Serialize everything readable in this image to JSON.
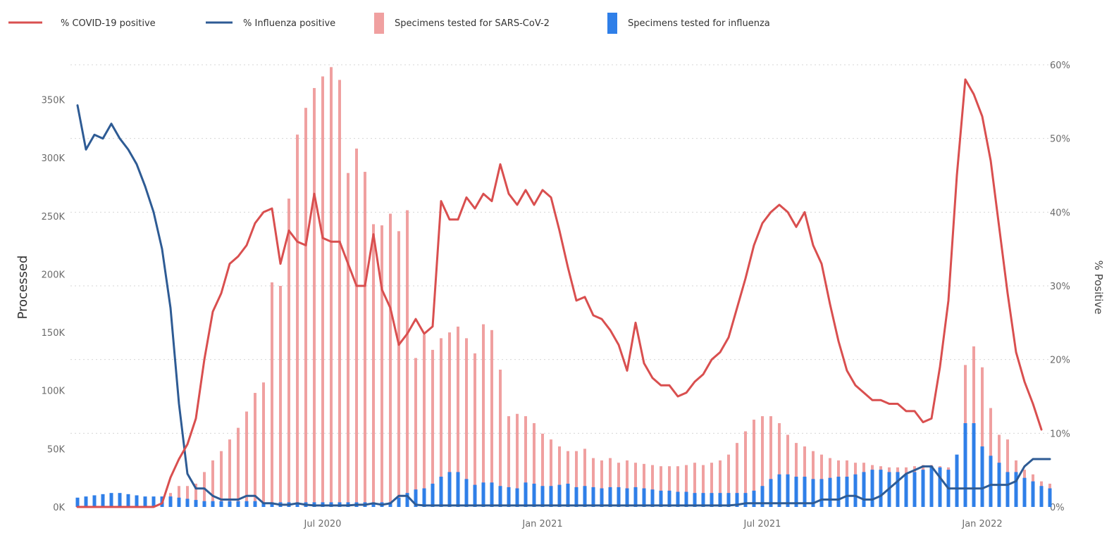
{
  "chart_data": {
    "type": "bar",
    "title": "",
    "legend": {
      "placement": "top-left",
      "items": [
        {
          "label": "% COVID-19 positive",
          "kind": "line",
          "color": "#d94f4f"
        },
        {
          "label": "% Influenza positive",
          "kind": "line",
          "color": "#2e5b94"
        },
        {
          "label": "Specimens tested for SARS-CoV-2",
          "kind": "bar",
          "color": "#f0a0a0"
        },
        {
          "label": "Specimens tested for influenza",
          "kind": "bar",
          "color": "#2f7fe8"
        }
      ]
    },
    "y_left": {
      "label": "Processed",
      "ylim": [
        0,
        380000
      ],
      "ticks": [
        0,
        50000,
        100000,
        150000,
        200000,
        250000,
        300000,
        350000
      ],
      "tick_labels": [
        "0K",
        "50K",
        "100K",
        "150K",
        "200K",
        "250K",
        "300K",
        "350K"
      ]
    },
    "y_right": {
      "label": "% Positive",
      "ylim": [
        0,
        60
      ],
      "ticks": [
        0,
        10,
        20,
        30,
        40,
        50,
        60
      ],
      "tick_labels": [
        "0%",
        "10%",
        "20%",
        "30%",
        "40%",
        "50%",
        "60%"
      ]
    },
    "x_axis": {
      "label": "",
      "ticks": [
        {
          "week": 29,
          "label": "Jul 2020"
        },
        {
          "week": 55,
          "label": "Jan 2021"
        },
        {
          "week": 81,
          "label": "Jul 2021"
        },
        {
          "week": 107,
          "label": "Jan 2022"
        }
      ]
    },
    "grid": true,
    "weeks": 116,
    "series": [
      {
        "name": "Specimens tested for SARS-CoV-2",
        "type": "bar",
        "axis": "left",
        "color": "#f0a0a0",
        "values": [
          1000,
          1000,
          1000,
          1000,
          1000,
          1000,
          1000,
          1000,
          3000,
          5000,
          8000,
          12000,
          18000,
          18000,
          20000,
          30000,
          40000,
          48000,
          58000,
          68000,
          82000,
          98000,
          107000,
          193000,
          190000,
          265000,
          320000,
          343000,
          360000,
          370000,
          378000,
          367000,
          287000,
          308000,
          288000,
          243000,
          242000,
          252000,
          237000,
          255000,
          128000,
          148000,
          135000,
          145000,
          150000,
          155000,
          145000,
          132000,
          157000,
          152000,
          118000,
          78000,
          80000,
          78000,
          72000,
          63000,
          58000,
          52000,
          48000,
          48000,
          50000,
          42000,
          40000,
          42000,
          38000,
          40000,
          38000,
          37000,
          36000,
          35000,
          35000,
          35000,
          36000,
          38000,
          36000,
          38000,
          40000,
          45000,
          55000,
          65000,
          75000,
          78000,
          78000,
          72000,
          62000,
          55000,
          52000,
          48000,
          45000,
          42000,
          40000,
          40000,
          38000,
          38000,
          36000,
          35000,
          34000,
          34000,
          34000,
          35000,
          36000,
          36000,
          35000,
          34000,
          30000,
          122000,
          138000,
          120000,
          85000,
          62000,
          58000,
          40000,
          32000,
          28000,
          22000,
          20000
        ]
      },
      {
        "name": "Specimens tested for influenza",
        "type": "bar",
        "axis": "left",
        "color": "#2f7fe8",
        "values": [
          8000,
          9000,
          10000,
          11000,
          12000,
          12000,
          11000,
          10000,
          9000,
          9000,
          9000,
          9000,
          8000,
          7000,
          6000,
          5000,
          5000,
          5000,
          5000,
          5000,
          5000,
          5000,
          4000,
          4000,
          4000,
          4000,
          4000,
          4000,
          4000,
          4000,
          4000,
          4000,
          4000,
          4000,
          4000,
          4000,
          4000,
          4000,
          8000,
          12000,
          15000,
          16000,
          20000,
          26000,
          30000,
          30000,
          24000,
          19000,
          21000,
          21000,
          18000,
          17000,
          16000,
          21000,
          20000,
          18000,
          18000,
          19000,
          20000,
          17000,
          18000,
          17000,
          16000,
          17000,
          17000,
          16000,
          17000,
          16000,
          15000,
          14000,
          14000,
          13000,
          13000,
          12000,
          12000,
          12000,
          12000,
          12000,
          12000,
          12000,
          14000,
          18000,
          24000,
          28000,
          28000,
          26000,
          26000,
          24000,
          24000,
          25000,
          26000,
          26000,
          28000,
          30000,
          32000,
          32000,
          30000,
          30000,
          28000,
          30000,
          32000,
          35000,
          34000,
          32000,
          45000,
          72000,
          72000,
          52000,
          44000,
          38000,
          30000,
          30000,
          25000,
          22000,
          18000,
          16000
        ]
      },
      {
        "name": "% COVID-19 positive",
        "type": "line",
        "axis": "right",
        "color": "#d94f4f",
        "values": [
          0.0,
          0.0,
          0.0,
          0.0,
          0.0,
          0.0,
          0.0,
          0.0,
          0.0,
          0.0,
          0.5,
          4.0,
          6.5,
          8.5,
          12.0,
          20.0,
          26.5,
          29.0,
          33.0,
          34.0,
          35.5,
          38.5,
          40.0,
          40.5,
          33.0,
          37.5,
          36.0,
          35.5,
          42.5,
          36.5,
          36.0,
          36.0,
          33.0,
          30.0,
          30.0,
          37.0,
          29.5,
          27.0,
          22.0,
          23.5,
          25.5,
          23.5,
          24.5,
          41.5,
          39.0,
          39.0,
          42.0,
          40.5,
          42.5,
          41.5,
          46.5,
          42.5,
          41.0,
          43.0,
          41.0,
          43.0,
          42.0,
          37.5,
          32.5,
          28.0,
          28.5,
          26.0,
          25.5,
          24.0,
          22.0,
          18.5,
          25.0,
          19.5,
          17.5,
          16.5,
          16.5,
          15.0,
          15.5,
          17.0,
          18.0,
          20.0,
          21.0,
          23.0,
          27.0,
          31.0,
          35.5,
          38.5,
          40.0,
          41.0,
          40.0,
          38.0,
          40.0,
          35.5,
          33.0,
          27.5,
          22.5,
          18.5,
          16.5,
          15.5,
          14.5,
          14.5,
          14.0,
          14.0,
          13.0,
          13.0,
          11.5,
          12.0,
          19.0,
          28.0,
          45.0,
          58.0,
          56.0,
          53.0,
          47.0,
          38.0,
          29.0,
          21.0,
          17.0,
          14.0,
          10.5
        ]
      },
      {
        "name": "% Influenza positive",
        "type": "line",
        "axis": "right",
        "color": "#2e5b94",
        "values": [
          54.5,
          48.5,
          50.5,
          50.0,
          52.0,
          50.0,
          48.5,
          46.5,
          43.5,
          40.0,
          35.0,
          27.0,
          14.0,
          4.5,
          2.5,
          2.5,
          1.5,
          1.0,
          1.0,
          1.0,
          1.5,
          1.5,
          0.5,
          0.5,
          0.3,
          0.3,
          0.5,
          0.3,
          0.2,
          0.2,
          0.2,
          0.2,
          0.2,
          0.3,
          0.3,
          0.5,
          0.3,
          0.5,
          1.5,
          1.5,
          0.3,
          0.2,
          0.2,
          0.2,
          0.2,
          0.2,
          0.2,
          0.2,
          0.2,
          0.2,
          0.2,
          0.2,
          0.2,
          0.2,
          0.2,
          0.2,
          0.2,
          0.2,
          0.2,
          0.2,
          0.2,
          0.2,
          0.2,
          0.2,
          0.2,
          0.2,
          0.2,
          0.2,
          0.2,
          0.2,
          0.2,
          0.2,
          0.2,
          0.2,
          0.2,
          0.2,
          0.2,
          0.2,
          0.3,
          0.5,
          0.5,
          0.5,
          0.5,
          0.5,
          0.5,
          0.5,
          0.5,
          0.5,
          1.0,
          1.0,
          1.0,
          1.5,
          1.5,
          1.0,
          1.0,
          1.5,
          2.5,
          3.5,
          4.5,
          5.0,
          5.5,
          5.5,
          4.0,
          2.5,
          2.5,
          2.5,
          2.5,
          2.5,
          3.0,
          3.0,
          3.0,
          3.5,
          5.5,
          6.5,
          6.5,
          6.5
        ]
      }
    ]
  }
}
